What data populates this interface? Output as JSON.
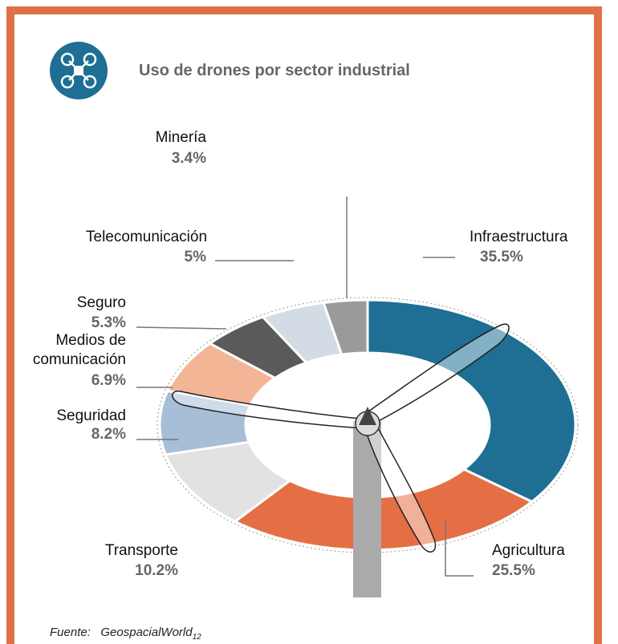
{
  "chart_data": {
    "type": "donut",
    "title": "Uso de drones por sector industrial",
    "categories": [
      "Infraestructura",
      "Agricultura",
      "Transporte",
      "Seguridad",
      "Medios de comunicación",
      "Seguro",
      "Telecomunicación",
      "Minería"
    ],
    "values": [
      35.5,
      25.5,
      10.2,
      8.2,
      6.9,
      5.3,
      5,
      3.4
    ],
    "value_labels": [
      "35.5%",
      "25.5%",
      "10.2%",
      "8.2%",
      "6.9%",
      "5.3%",
      "5%",
      "3.4%"
    ],
    "colors": [
      "#1e6f93",
      "#e56f45",
      "#e2e2e2",
      "#a6bed6",
      "#f2b596",
      "#5a5a5a",
      "#d3dbe5",
      "#9a9a9a"
    ],
    "source_label": "Fuente:",
    "source": "GeospacialWorld",
    "source_note": "12"
  }
}
